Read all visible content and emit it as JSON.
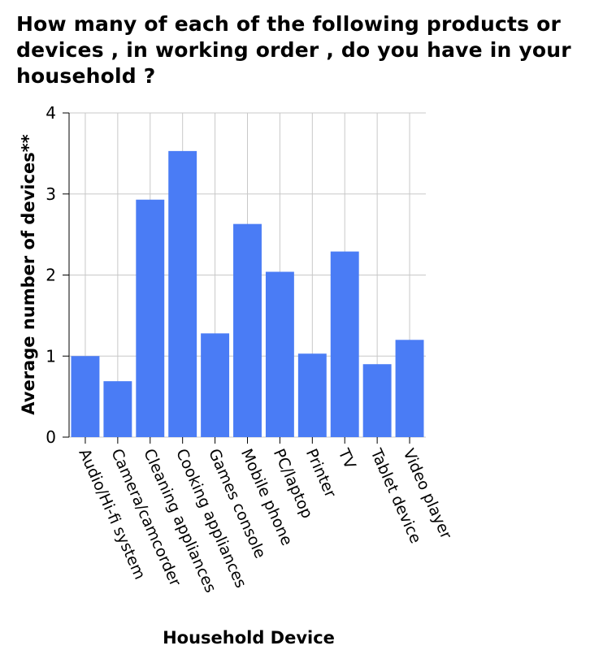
{
  "chart_data": {
    "type": "bar",
    "title": "How many of each of the following products or devices , in working order , do you have in your household ?",
    "xlabel": "Household Device",
    "ylabel": "Average number of devices**",
    "ylim": [
      0,
      4
    ],
    "yticks": [
      0,
      1,
      2,
      3,
      4
    ],
    "grid": true,
    "bar_color": "#4a7cf5",
    "grid_color": "#c8c8c8",
    "categories": [
      "Audio/Hi-fi system",
      "Camera/camcorder",
      "Cleaning appliances",
      "Cooking appliances",
      "Games console",
      "Mobile phone",
      "PC/laptop",
      "Printer",
      "TV",
      "Tablet device",
      "Video player"
    ],
    "values": [
      1.0,
      0.69,
      2.93,
      3.53,
      1.28,
      2.63,
      2.04,
      1.03,
      2.29,
      0.9,
      1.2
    ]
  }
}
